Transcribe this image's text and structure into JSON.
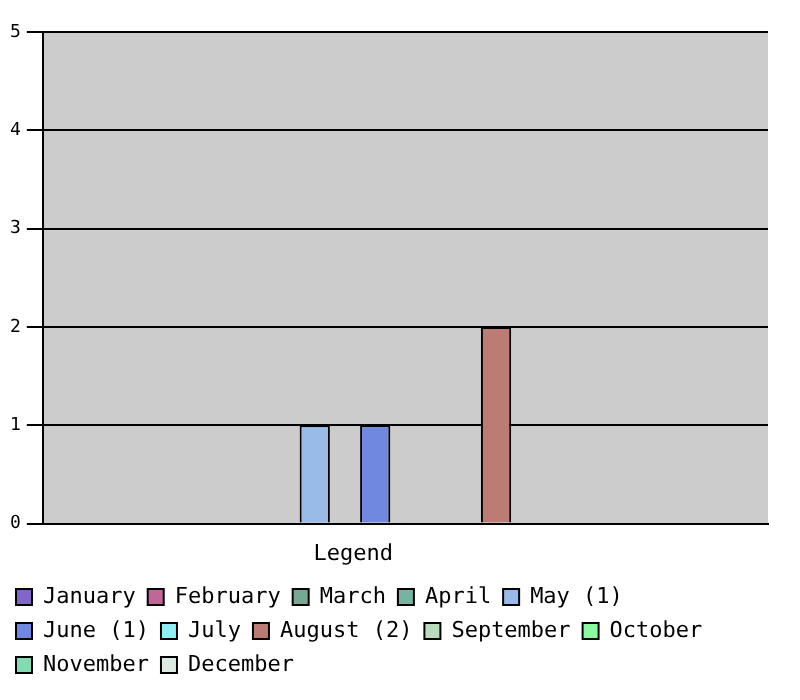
{
  "chart_data": {
    "type": "bar",
    "legend_title": "Legend",
    "categories": [
      null
    ],
    "series": [
      {
        "name": "January",
        "color": "#8066c8",
        "values": [
          0
        ]
      },
      {
        "name": "February",
        "color": "#c06699",
        "values": [
          0
        ]
      },
      {
        "name": "March",
        "color": "#77a893",
        "values": [
          0
        ]
      },
      {
        "name": "April",
        "color": "#77b3a0",
        "values": [
          0
        ]
      },
      {
        "name": "May (1)",
        "color": "#99bbe8",
        "values": [
          1
        ]
      },
      {
        "name": "June (1)",
        "color": "#7088e0",
        "values": [
          1
        ]
      },
      {
        "name": "July",
        "color": "#90eef5",
        "values": [
          0
        ]
      },
      {
        "name": "August (2)",
        "color": "#bb7d73",
        "values": [
          2
        ]
      },
      {
        "name": "September",
        "color": "#b8ddbc",
        "values": [
          0
        ]
      },
      {
        "name": "October",
        "color": "#8cf99e",
        "values": [
          0
        ]
      },
      {
        "name": "November",
        "color": "#80ddb3",
        "values": [
          0
        ]
      },
      {
        "name": "December",
        "color": "#dcebe1",
        "values": [
          0
        ]
      }
    ],
    "ylim": [
      0,
      5
    ],
    "yticks": [
      0,
      1,
      2,
      3,
      4,
      5
    ],
    "grid": "y",
    "legend": "bottom",
    "tick_labels": "y"
  }
}
